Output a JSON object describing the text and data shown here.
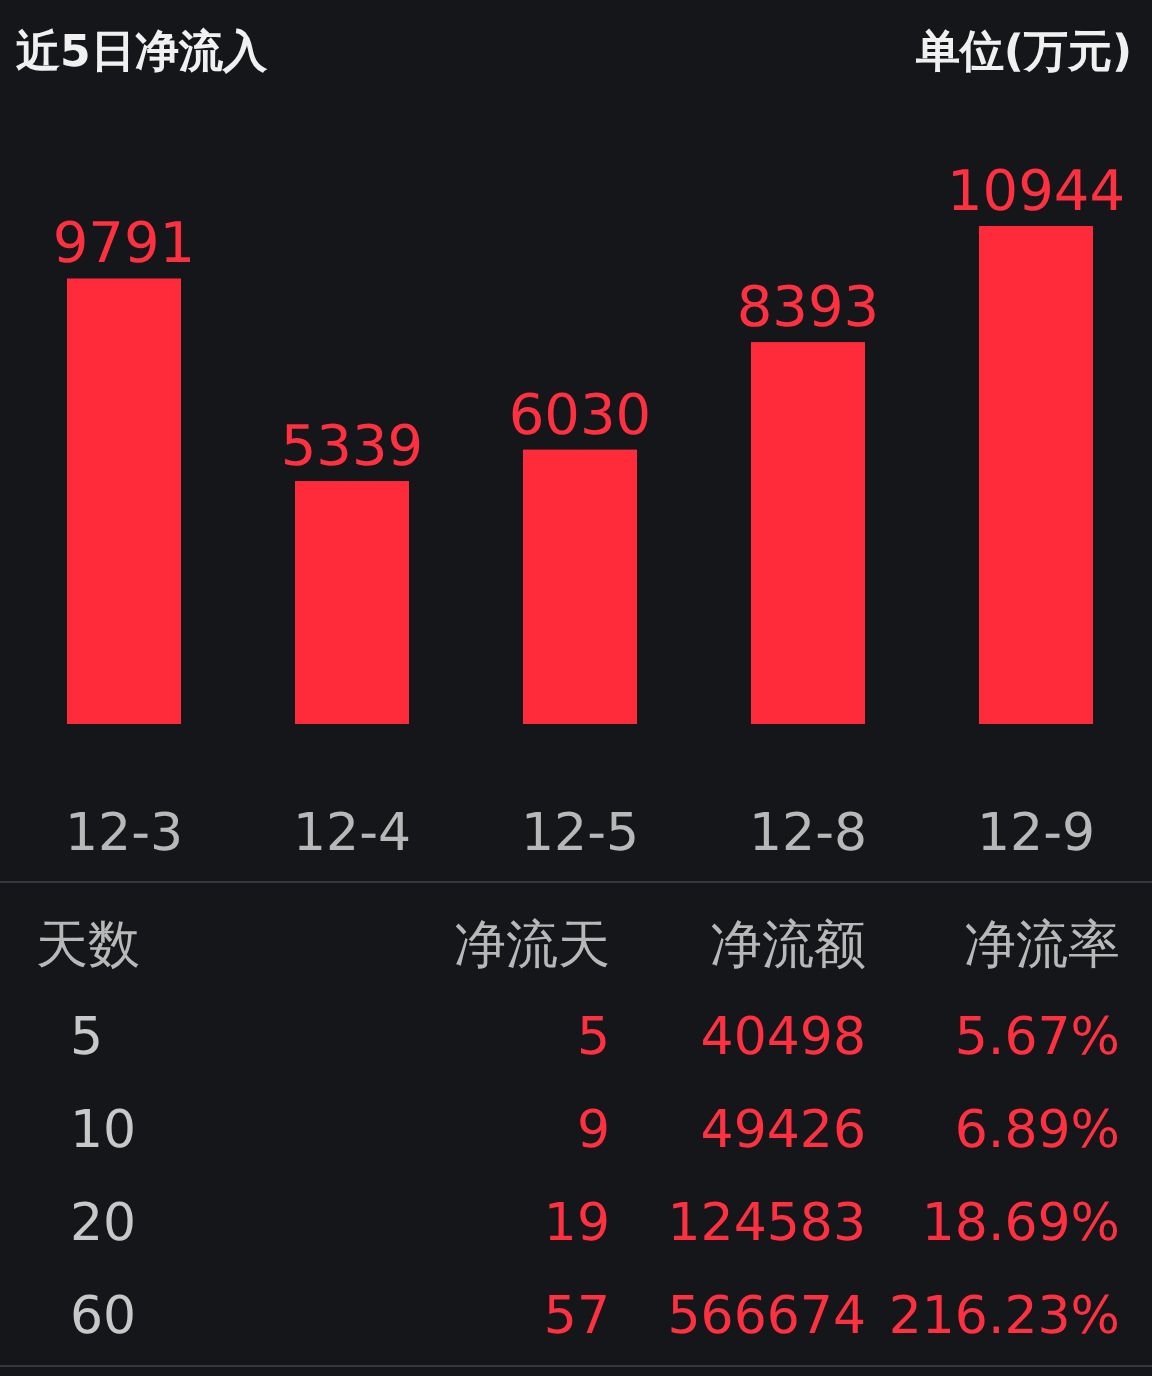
{
  "chart_data": [
    {
      "type": "bar",
      "title": "近5日净流入",
      "subtitle": "单位(万元)",
      "categories": [
        "12-3",
        "12-4",
        "12-5",
        "12-8",
        "12-9"
      ],
      "values": [
        9791,
        5339,
        6030,
        8393,
        10944
      ],
      "color": "#ff2a3a",
      "data_labels": true
    },
    {
      "type": "other",
      "annotations": [
        "天数",
        "净流天",
        "净流额",
        "净流率",
        "5",
        "5",
        "40498",
        "5.67%",
        "10",
        "9",
        "49426",
        "6.89%",
        "20",
        "19",
        "124583",
        "18.69%",
        "60",
        "57",
        "566674",
        "216.23%"
      ]
    }
  ]
}
